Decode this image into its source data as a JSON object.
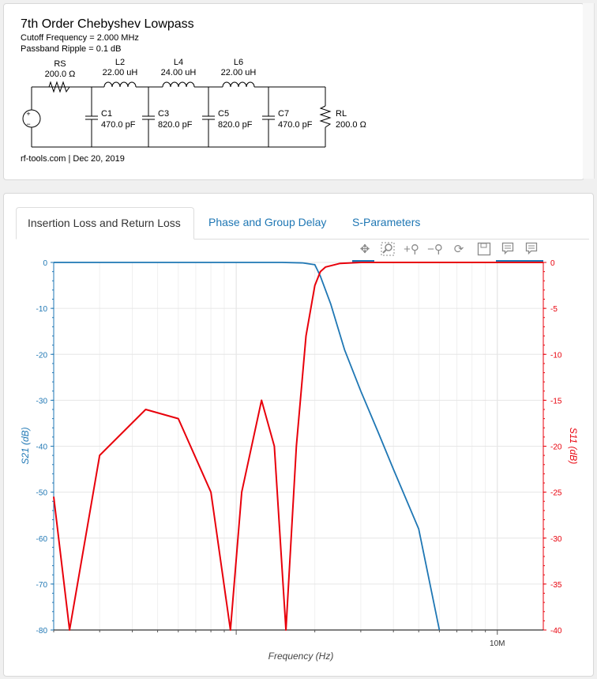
{
  "circuit": {
    "title": "7th Order Chebyshev Lowpass",
    "cutoff": "Cutoff Frequency = 2.000 MHz",
    "ripple": "Passband Ripple = 0.1 dB",
    "footer": "rf-tools.com | Dec 20, 2019",
    "source": {
      "name": "RS",
      "value": "200.0 Ω"
    },
    "load": {
      "name": "RL",
      "value": "200.0 Ω"
    },
    "inductors": [
      {
        "name": "L2",
        "value": "22.00 uH"
      },
      {
        "name": "L4",
        "value": "24.00 uH"
      },
      {
        "name": "L6",
        "value": "22.00 uH"
      }
    ],
    "capacitors": [
      {
        "name": "C1",
        "value": "470.0 pF"
      },
      {
        "name": "C3",
        "value": "820.0 pF"
      },
      {
        "name": "C5",
        "value": "820.0 pF"
      },
      {
        "name": "C7",
        "value": "470.0 pF"
      }
    ]
  },
  "tabs": [
    "Insertion Loss and Return Loss",
    "Phase and Group Delay",
    "S-Parameters"
  ],
  "toolbar": [
    "pan-icon",
    "box-zoom-icon",
    "zoom-in-icon",
    "zoom-out-icon",
    "reset-icon",
    "save-icon",
    "hover-icon",
    "hover-icon"
  ],
  "colors": {
    "s21": "#1f77b4",
    "s11": "#e8000b",
    "link": "#1f77b4"
  },
  "chart_data": {
    "type": "line",
    "xlabel": "Frequency (Hz)",
    "ylabel_left": "S21 (dB)",
    "ylabel_right": "S11 (dB)",
    "x_scale": "log",
    "xlim": [
      200000,
      15000000
    ],
    "x_tick_labels": [
      {
        "x": 10000000,
        "label": "10M"
      }
    ],
    "ylim_left": [
      -80,
      0
    ],
    "ylim_right": [
      -40,
      0
    ],
    "y_ticks_left": [
      0,
      -10,
      -20,
      -30,
      -40,
      -50,
      -60,
      -70,
      -80
    ],
    "y_ticks_right": [
      0,
      -5,
      -10,
      -15,
      -20,
      -25,
      -30,
      -35,
      -40
    ],
    "grid": true,
    "series": [
      {
        "name": "S21 (dB)",
        "axis": "left",
        "x": [
          200000,
          500000,
          1000000,
          1500000,
          1800000,
          2000000,
          2100000,
          2300000,
          2600000,
          3000000,
          3500000,
          4000000,
          5000000,
          6000000
        ],
        "y": [
          0,
          0,
          0,
          0,
          -0.1,
          -0.5,
          -3,
          -9,
          -19,
          -28,
          -37,
          -45,
          -58,
          -80
        ]
      },
      {
        "name": "S11 (dB)",
        "axis": "right",
        "x": [
          200000,
          230000,
          300000,
          450000,
          600000,
          800000,
          950000,
          1050000,
          1250000,
          1400000,
          1550000,
          1700000,
          1850000,
          2000000,
          2100000,
          2200000,
          2500000,
          3000000,
          15000000
        ],
        "y": [
          -25.5,
          -40,
          -21,
          -16,
          -17,
          -25,
          -40,
          -25,
          -15,
          -20,
          -40,
          -20,
          -8,
          -2.5,
          -1,
          -0.5,
          -0.1,
          0,
          0
        ]
      }
    ]
  }
}
